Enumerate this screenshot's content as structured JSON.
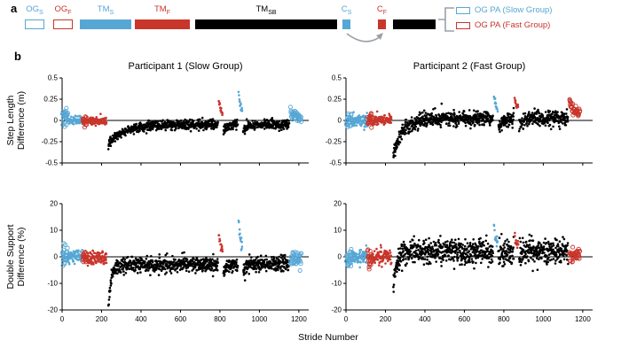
{
  "colors": {
    "blue": "#56A7D5",
    "red": "#C9352B",
    "black": "#000000",
    "gray": "#9AA0A6"
  },
  "panel_a": {
    "label": "a",
    "phases": [
      {
        "main": "OG",
        "sub": "S",
        "color": "blue",
        "fill": false
      },
      {
        "main": "OG",
        "sub": "F",
        "color": "red",
        "fill": false
      },
      {
        "main": "TM",
        "sub": "S",
        "color": "blue",
        "fill": true
      },
      {
        "main": "TM",
        "sub": "F",
        "color": "red",
        "fill": true
      },
      {
        "main": "TM",
        "sub": "SB",
        "color": "black",
        "fill": true
      },
      {
        "main": "C",
        "sub": "S",
        "color": "blue",
        "fill": true
      },
      {
        "main": "C",
        "sub": "F",
        "color": "red",
        "fill": true
      }
    ],
    "legend": [
      {
        "label": "OG PA (Slow Group)",
        "color": "blue"
      },
      {
        "label": "OG PA (Fast Group)",
        "color": "red"
      }
    ]
  },
  "panel_b": {
    "label": "b",
    "xlabel": "Stride Number"
  },
  "chart_data": [
    {
      "id": "p1-step-length",
      "type": "scatter",
      "title": "Participant 1 (Slow Group)",
      "ylabel": "Step Length Difference (m)",
      "ylabel_lines": [
        "Step Length",
        "Difference (m)"
      ],
      "ylim": [
        -0.5,
        0.5
      ],
      "yticks": [
        0.5,
        0.25,
        0,
        -0.25,
        -0.5
      ],
      "ytick_labels": [
        "0.5",
        "0.25",
        "0",
        "-0.25",
        "-0.5"
      ],
      "xlim": [
        0,
        1250
      ],
      "xticks": [
        0,
        200,
        400,
        600,
        800,
        1000,
        1200
      ],
      "zero_line": true,
      "segments": [
        {
          "x0": 2,
          "x1": 28,
          "n": 26,
          "color": "blue",
          "open": true,
          "y": 0.04,
          "sd": 0.05
        },
        {
          "x0": 28,
          "x1": 105,
          "n": 77,
          "color": "blue",
          "open": false,
          "y": 0.0,
          "sd": 0.025
        },
        {
          "x0": 105,
          "x1": 125,
          "n": 20,
          "color": "red",
          "open": true,
          "y": 0.0,
          "sd": 0.035
        },
        {
          "x0": 125,
          "x1": 225,
          "n": 100,
          "color": "red",
          "open": false,
          "y": -0.01,
          "sd": 0.022
        },
        {
          "x0": 235,
          "x1": 790,
          "n": 555,
          "color": "black",
          "open": false,
          "decay": {
            "from": -0.27,
            "to": -0.05,
            "tau": 80
          },
          "sd": 0.028
        },
        {
          "x0": 795,
          "x1": 813,
          "n": 13,
          "color": "red",
          "open": false,
          "decay": {
            "from": 0.24,
            "to": 0.07,
            "tau": 8
          },
          "sd": 0.02
        },
        {
          "x0": 818,
          "x1": 890,
          "n": 72,
          "color": "black",
          "open": false,
          "decay": {
            "from": -0.12,
            "to": -0.05,
            "tau": 20
          },
          "sd": 0.028
        },
        {
          "x0": 895,
          "x1": 913,
          "n": 13,
          "color": "blue",
          "open": false,
          "decay": {
            "from": 0.33,
            "to": 0.1,
            "tau": 8
          },
          "sd": 0.02
        },
        {
          "x0": 918,
          "x1": 1150,
          "n": 230,
          "color": "black",
          "open": false,
          "decay": {
            "from": -0.12,
            "to": -0.045,
            "tau": 25
          },
          "sd": 0.028
        },
        {
          "x0": 1158,
          "x1": 1212,
          "n": 38,
          "color": "blue",
          "open": true,
          "decay": {
            "from": 0.1,
            "to": 0.03,
            "tau": 20
          },
          "sd": 0.03
        }
      ]
    },
    {
      "id": "p2-step-length",
      "type": "scatter",
      "title": "Participant 2 (Fast Group)",
      "ylabel": "Step Length Difference (m)",
      "ylabel_lines": [],
      "ylim": [
        -0.5,
        0.5
      ],
      "yticks": [
        0.5,
        0.25,
        0,
        -0.25,
        -0.5
      ],
      "ytick_labels": [
        "0.5",
        "0.25",
        "0",
        "-0.25",
        "-0.5"
      ],
      "xlim": [
        0,
        1250
      ],
      "xticks": [
        0,
        200,
        400,
        600,
        800,
        1000,
        1200
      ],
      "zero_line": true,
      "segments": [
        {
          "x0": 2,
          "x1": 28,
          "n": 24,
          "color": "blue",
          "open": true,
          "y": 0.0,
          "sd": 0.04
        },
        {
          "x0": 28,
          "x1": 110,
          "n": 82,
          "color": "blue",
          "open": false,
          "y": 0.0,
          "sd": 0.035
        },
        {
          "x0": 110,
          "x1": 130,
          "n": 20,
          "color": "red",
          "open": true,
          "y": 0.01,
          "sd": 0.04
        },
        {
          "x0": 130,
          "x1": 230,
          "n": 100,
          "color": "red",
          "open": false,
          "y": 0.0,
          "sd": 0.03
        },
        {
          "x0": 240,
          "x1": 745,
          "n": 505,
          "color": "black",
          "open": false,
          "decay": {
            "from": -0.42,
            "to": 0.02,
            "tau": 45
          },
          "sd": 0.045
        },
        {
          "x0": 750,
          "x1": 768,
          "n": 13,
          "color": "blue",
          "open": false,
          "decay": {
            "from": 0.3,
            "to": 0.12,
            "tau": 8
          },
          "sd": 0.02
        },
        {
          "x0": 773,
          "x1": 850,
          "n": 77,
          "color": "black",
          "open": false,
          "decay": {
            "from": -0.08,
            "to": 0.02,
            "tau": 18
          },
          "sd": 0.045
        },
        {
          "x0": 855,
          "x1": 873,
          "n": 13,
          "color": "red",
          "open": false,
          "decay": {
            "from": 0.27,
            "to": 0.12,
            "tau": 8
          },
          "sd": 0.02
        },
        {
          "x0": 878,
          "x1": 1125,
          "n": 245,
          "color": "black",
          "open": false,
          "decay": {
            "from": -0.06,
            "to": 0.03,
            "tau": 25
          },
          "sd": 0.045
        },
        {
          "x0": 1133,
          "x1": 1185,
          "n": 38,
          "color": "red",
          "open": true,
          "decay": {
            "from": 0.22,
            "to": 0.08,
            "tau": 20
          },
          "sd": 0.035
        }
      ]
    },
    {
      "id": "p1-double-support",
      "type": "scatter",
      "title": "Participant 1 (Slow Group)",
      "ylabel": "Double Support Difference (%)",
      "ylabel_lines": [
        "Double Support",
        "Difference (%)"
      ],
      "ylim": [
        -20,
        20
      ],
      "yticks": [
        20,
        10,
        0,
        -10,
        -20
      ],
      "ytick_labels": [
        "20",
        "10",
        "0",
        "-10",
        "-20"
      ],
      "xlim": [
        0,
        1250
      ],
      "xticks": [
        0,
        200,
        400,
        600,
        800,
        1000,
        1200
      ],
      "zero_line": true,
      "segments": [
        {
          "x0": 2,
          "x1": 28,
          "n": 26,
          "color": "blue",
          "open": true,
          "y": 0.5,
          "sd": 2.2
        },
        {
          "x0": 28,
          "x1": 105,
          "n": 77,
          "color": "blue",
          "open": false,
          "y": 0.0,
          "sd": 1.3
        },
        {
          "x0": 105,
          "x1": 125,
          "n": 20,
          "color": "red",
          "open": true,
          "y": 0.0,
          "sd": 1.6
        },
        {
          "x0": 125,
          "x1": 225,
          "n": 100,
          "color": "red",
          "open": false,
          "y": -0.5,
          "sd": 1.2
        },
        {
          "x0": 235,
          "x1": 790,
          "n": 555,
          "color": "black",
          "open": false,
          "decay": {
            "from": -19,
            "to": -3,
            "tau": 14
          },
          "sd": 1.4
        },
        {
          "x0": 795,
          "x1": 813,
          "n": 13,
          "color": "red",
          "open": false,
          "decay": {
            "from": 8,
            "to": 2.5,
            "tau": 8
          },
          "sd": 0.9
        },
        {
          "x0": 818,
          "x1": 890,
          "n": 72,
          "color": "black",
          "open": false,
          "decay": {
            "from": -6,
            "to": -3,
            "tau": 15
          },
          "sd": 1.4
        },
        {
          "x0": 895,
          "x1": 913,
          "n": 13,
          "color": "blue",
          "open": false,
          "decay": {
            "from": 13,
            "to": 4,
            "tau": 8
          },
          "sd": 1.0
        },
        {
          "x0": 918,
          "x1": 1150,
          "n": 230,
          "color": "black",
          "open": false,
          "decay": {
            "from": -5,
            "to": -2.5,
            "tau": 20
          },
          "sd": 1.4
        },
        {
          "x0": 1158,
          "x1": 1212,
          "n": 38,
          "color": "blue",
          "open": true,
          "y": -0.5,
          "sd": 1.6
        }
      ]
    },
    {
      "id": "p2-double-support",
      "type": "scatter",
      "title": "Participant 2 (Fast Group)",
      "ylabel": "Double Support Difference (%)",
      "ylabel_lines": [],
      "ylim": [
        -20,
        20
      ],
      "yticks": [
        20,
        10,
        0,
        -10,
        -20
      ],
      "ytick_labels": [
        "20",
        "10",
        "0",
        "-10",
        "-20"
      ],
      "xlim": [
        0,
        1250
      ],
      "xticks": [
        0,
        200,
        400,
        600,
        800,
        1000,
        1200
      ],
      "zero_line": true,
      "segments": [
        {
          "x0": 2,
          "x1": 28,
          "n": 24,
          "color": "blue",
          "open": true,
          "y": 0.0,
          "sd": 2.0
        },
        {
          "x0": 28,
          "x1": 110,
          "n": 82,
          "color": "blue",
          "open": false,
          "y": 0.0,
          "sd": 1.5
        },
        {
          "x0": 110,
          "x1": 130,
          "n": 20,
          "color": "red",
          "open": true,
          "y": 0.0,
          "sd": 1.8
        },
        {
          "x0": 130,
          "x1": 230,
          "n": 100,
          "color": "red",
          "open": false,
          "y": 0.0,
          "sd": 1.4
        },
        {
          "x0": 240,
          "x1": 745,
          "n": 505,
          "color": "black",
          "open": false,
          "decay": {
            "from": -10,
            "to": 2,
            "tau": 18
          },
          "sd": 2.2
        },
        {
          "x0": 750,
          "x1": 768,
          "n": 13,
          "color": "blue",
          "open": false,
          "decay": {
            "from": 12,
            "to": 5,
            "tau": 8
          },
          "sd": 1.2
        },
        {
          "x0": 773,
          "x1": 850,
          "n": 77,
          "color": "black",
          "open": false,
          "decay": {
            "from": 0,
            "to": 2,
            "tau": 15
          },
          "sd": 2.2
        },
        {
          "x0": 855,
          "x1": 873,
          "n": 13,
          "color": "red",
          "open": false,
          "decay": {
            "from": 9,
            "to": 4,
            "tau": 8
          },
          "sd": 1.2
        },
        {
          "x0": 878,
          "x1": 1125,
          "n": 245,
          "color": "black",
          "open": false,
          "decay": {
            "from": 1,
            "to": 2,
            "tau": 20
          },
          "sd": 2.2
        },
        {
          "x0": 1133,
          "x1": 1185,
          "n": 38,
          "color": "red",
          "open": true,
          "y": 0.5,
          "sd": 1.5
        }
      ]
    }
  ]
}
